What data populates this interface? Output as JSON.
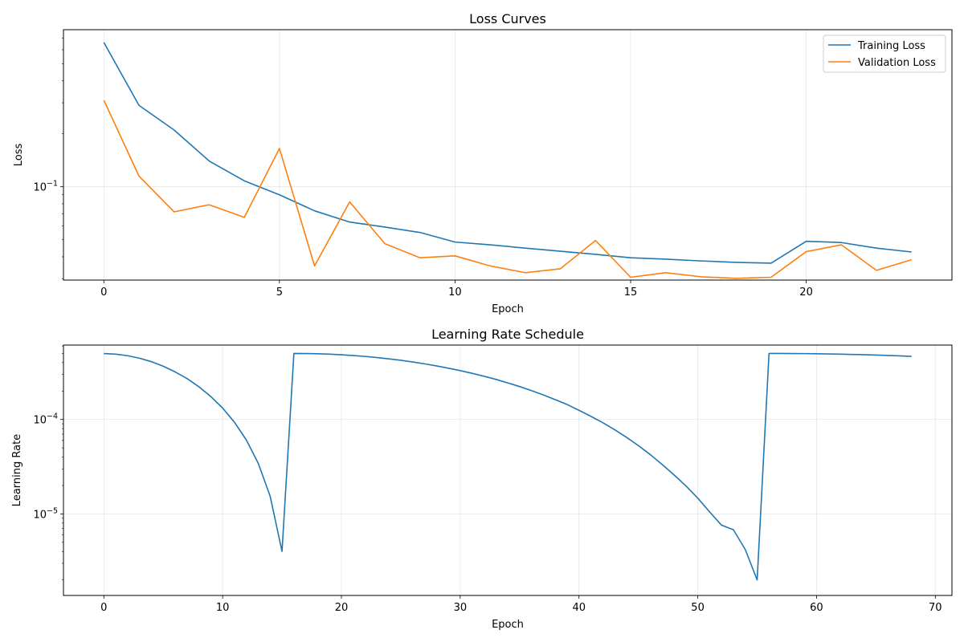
{
  "chart_data": [
    {
      "type": "line",
      "title": "Loss Curves",
      "xlabel": "Epoch",
      "ylabel": "Loss",
      "yscale": "log",
      "xlim": [
        -1.15,
        24.15
      ],
      "ylim": [
        0.0295,
        0.78
      ],
      "xticks": [
        0,
        5,
        10,
        15,
        20
      ],
      "yticks": [
        0.1
      ],
      "ytick_labels": [
        {
          "base": "10",
          "exponent": "−1"
        }
      ],
      "grid": true,
      "legend": {
        "placement": "top-right",
        "entries": [
          "Training Loss",
          "Validation Loss"
        ]
      },
      "series": [
        {
          "name": "Training Loss",
          "color": "#1f77b4",
          "x": [
            0,
            1,
            2,
            3,
            4,
            5,
            6,
            7,
            8,
            9,
            10,
            11,
            12,
            13,
            14,
            15,
            16,
            17,
            18,
            19,
            20,
            21,
            22,
            23
          ],
          "values": [
            0.66,
            0.29,
            0.21,
            0.14,
            0.108,
            0.09,
            0.073,
            0.063,
            0.059,
            0.055,
            0.0485,
            0.0468,
            0.0448,
            0.043,
            0.0413,
            0.0395,
            0.0388,
            0.0379,
            0.0372,
            0.0368,
            0.049,
            0.0482,
            0.0448,
            0.0426
          ]
        },
        {
          "name": "Validation Loss",
          "color": "#ff7f0e",
          "x": [
            0,
            1,
            2,
            3,
            4,
            5,
            6,
            7,
            8,
            9,
            10,
            11,
            12,
            13,
            14,
            15,
            16,
            17,
            18,
            19,
            20,
            21,
            22,
            23
          ],
          "values": [
            0.31,
            0.115,
            0.072,
            0.079,
            0.067,
            0.165,
            0.0355,
            0.082,
            0.0475,
            0.0395,
            0.0405,
            0.0355,
            0.0325,
            0.0342,
            0.0495,
            0.0306,
            0.0325,
            0.0308,
            0.0302,
            0.0306,
            0.0428,
            0.0468,
            0.0335,
            0.0385
          ]
        }
      ]
    },
    {
      "type": "line",
      "title": "Learning Rate Schedule",
      "xlabel": "Epoch",
      "ylabel": "Learning Rate",
      "yscale": "log",
      "xlim": [
        -3.4,
        71.4
      ],
      "ylim": [
        1.37e-06,
        0.000613
      ],
      "xticks": [
        0,
        10,
        20,
        30,
        40,
        50,
        60,
        70
      ],
      "yticks": [
        1e-05,
        0.0001
      ],
      "ytick_labels": [
        {
          "base": "10",
          "exponent": "−5"
        },
        {
          "base": "10",
          "exponent": "−4"
        }
      ],
      "grid": true,
      "series": [
        {
          "color": "#1f77b4",
          "x": [
            0,
            1,
            2,
            3,
            4,
            5,
            6,
            7,
            8,
            9,
            10,
            11,
            12,
            13,
            14,
            15,
            16,
            17,
            18,
            19,
            20,
            21,
            22,
            23,
            24,
            25,
            26,
            27,
            28,
            29,
            30,
            31,
            32,
            33,
            34,
            35,
            36,
            37,
            38,
            39,
            40,
            41,
            42,
            43,
            44,
            45,
            46,
            47,
            48,
            49,
            50,
            51,
            52,
            53,
            54,
            55,
            56,
            57,
            58,
            59,
            60,
            61,
            62,
            63,
            64,
            65,
            66,
            67,
            68
          ],
          "values": [
            0.000499,
            0.000491,
            0.000473,
            0.000445,
            0.000409,
            0.000366,
            0.000319,
            0.000271,
            0.000222,
            0.000175,
            0.000132,
            9.34e-05,
            6.05e-05,
            3.43e-05,
            1.54e-05,
            4.01e-06,
            0.0005,
            0.000499,
            0.000496,
            0.000491,
            0.000484,
            0.000475,
            0.000465,
            0.000452,
            0.000438,
            0.000423,
            0.000406,
            0.000388,
            0.000369,
            0.000349,
            0.000329,
            0.000308,
            0.000287,
            0.000266,
            0.000244,
            0.000223,
            0.000202,
            0.000182,
            0.000162,
            0.000144,
            0.000125,
            0.000108,
            9.24e-05,
            7.79e-05,
            6.47e-05,
            5.29e-05,
            4.25e-05,
            3.34e-05,
            2.59e-05,
            1.98e-05,
            1.47e-05,
            1.05e-05,
            7.6e-06,
            6.8e-06,
            4.2e-06,
            2e-06,
            0.0005,
            0.0005,
            0.000499,
            0.000498,
            0.000496,
            0.000494,
            0.000491,
            0.000488,
            0.000485,
            0.000481,
            0.000476,
            0.000471,
            0.000466
          ]
        }
      ]
    }
  ]
}
